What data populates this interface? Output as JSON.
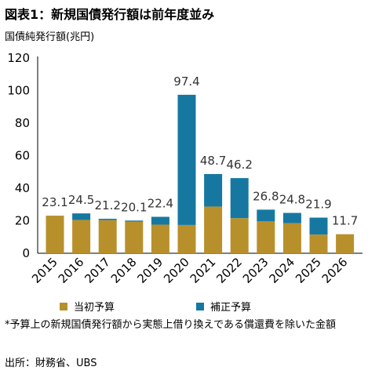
{
  "header": {
    "title": "図表1：新規国債発行額は前年度並み",
    "unit_label": "国債純発行額(兆円)"
  },
  "colors": {
    "initial": "#b8902b",
    "supplementary": "#1678a0"
  },
  "chart_data": {
    "type": "bar",
    "stacked": true,
    "categories": [
      "2015",
      "2016",
      "2017",
      "2018",
      "2019",
      "2020",
      "2021",
      "2022",
      "2023",
      "2024",
      "2025",
      "2026"
    ],
    "series": [
      {
        "name": "当初予算",
        "values": [
          23.1,
          20.5,
          20.4,
          19.5,
          17.6,
          17.4,
          28.7,
          21.6,
          19.6,
          18.5,
          11.5,
          11.7
        ]
      },
      {
        "name": "補正予算",
        "values": [
          0,
          4.0,
          0.8,
          0.6,
          4.8,
          80.0,
          20.0,
          24.6,
          7.2,
          6.3,
          10.4,
          0
        ]
      }
    ],
    "totals": [
      "23.1",
      "24.5",
      "21.2",
      "20.1",
      "22.4",
      "97.4",
      "48.7",
      "46.2",
      "26.8",
      "24.8",
      "21.9",
      "11.7"
    ],
    "y_ticks": [
      "0",
      "20",
      "40",
      "60",
      "80",
      "100",
      "120"
    ],
    "ylim": [
      0,
      120
    ],
    "grid": false,
    "legend_position": "bottom"
  },
  "footnote": "*予算上の新規国債発行額から実態上借り換えである償還費を除いた金額",
  "source": "出所：財務省、UBS"
}
